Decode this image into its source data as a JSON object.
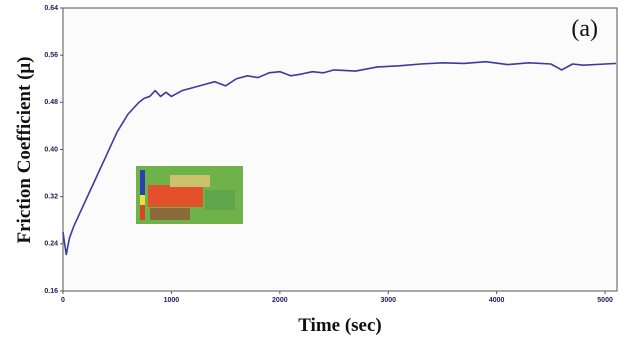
{
  "chart_data": {
    "type": "line",
    "annotation": "(a)",
    "x_label": "Time (sec)",
    "y_label": "Friction Coefficient (μ)",
    "xlim": [
      0,
      5110
    ],
    "ylim": [
      0.16,
      0.64
    ],
    "xticks": [
      0,
      1000,
      2000,
      3000,
      4000,
      5000
    ],
    "yticks": [
      0.16,
      0.24,
      0.32,
      {
        "value": 0.4,
        "label": "0.40"
      },
      0.48,
      0.56,
      0.64
    ],
    "series": [
      {
        "color": "#3b3b9e",
        "x": [
          0,
          15,
          30,
          60,
          100,
          150,
          200,
          250,
          300,
          350,
          400,
          450,
          500,
          550,
          600,
          650,
          700,
          750,
          800,
          850,
          900,
          950,
          1000,
          1100,
          1200,
          1300,
          1400,
          1500,
          1600,
          1700,
          1800,
          1900,
          2000,
          2100,
          2200,
          2300,
          2400,
          2500,
          2700,
          2900,
          3100,
          3300,
          3500,
          3700,
          3900,
          4100,
          4300,
          4500,
          4600,
          4700,
          4800,
          5000,
          5100
        ],
        "values": [
          0.26,
          0.24,
          0.222,
          0.25,
          0.27,
          0.29,
          0.31,
          0.33,
          0.35,
          0.37,
          0.39,
          0.41,
          0.43,
          0.445,
          0.46,
          0.47,
          0.48,
          0.487,
          0.49,
          0.5,
          0.49,
          0.497,
          0.49,
          0.5,
          0.505,
          0.51,
          0.515,
          0.508,
          0.52,
          0.525,
          0.522,
          0.53,
          0.532,
          0.525,
          0.528,
          0.532,
          0.53,
          0.535,
          0.533,
          0.54,
          0.542,
          0.545,
          0.547,
          0.546,
          0.549,
          0.544,
          0.547,
          0.545,
          0.535,
          0.545,
          0.543,
          0.545,
          0.546
        ]
      }
    ]
  }
}
